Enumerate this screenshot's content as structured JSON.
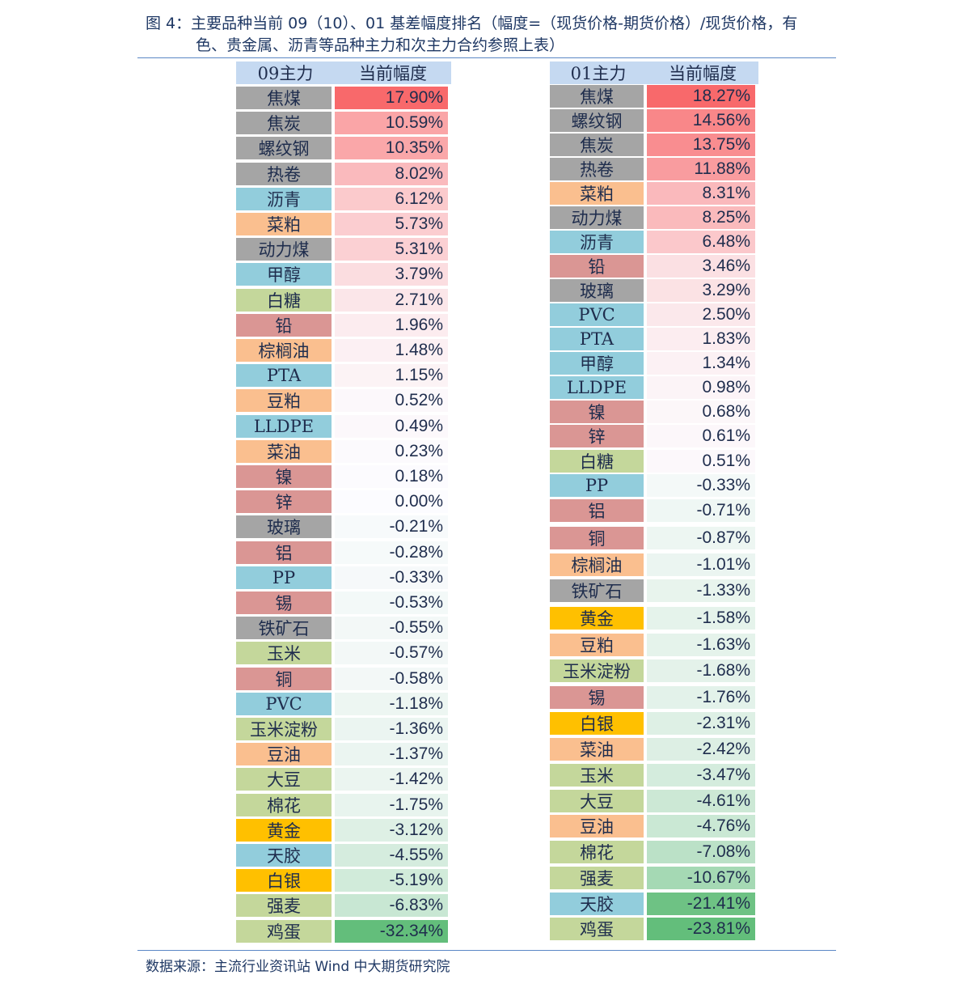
{
  "caption": {
    "line1": "图 4：主要品种当前 09（10）、01 基差幅度排名（幅度=（现货价格-期货价格）/现货价格，有",
    "line2": "色、贵金属、沥青等品种主力和次主力合约参照上表）"
  },
  "left_table": {
    "header": [
      "09主力",
      "当前幅度"
    ],
    "rows": [
      {
        "name": "焦煤",
        "value": "17.90%",
        "cat": "black"
      },
      {
        "name": "焦炭",
        "value": "10.59%",
        "cat": "black"
      },
      {
        "name": "螺纹钢",
        "value": "10.35%",
        "cat": "black"
      },
      {
        "name": "热卷",
        "value": "8.02%",
        "cat": "black"
      },
      {
        "name": "沥青",
        "value": "6.12%",
        "cat": "chem"
      },
      {
        "name": "菜粕",
        "value": "5.73%",
        "cat": "oil"
      },
      {
        "name": "动力煤",
        "value": "5.31%",
        "cat": "black"
      },
      {
        "name": "甲醇",
        "value": "3.79%",
        "cat": "chem"
      },
      {
        "name": "白糖",
        "value": "2.71%",
        "cat": "soft"
      },
      {
        "name": "铅",
        "value": "1.96%",
        "cat": "metal"
      },
      {
        "name": "棕榈油",
        "value": "1.48%",
        "cat": "oil"
      },
      {
        "name": "PTA",
        "value": "1.15%",
        "cat": "chem"
      },
      {
        "name": "豆粕",
        "value": "0.52%",
        "cat": "oil"
      },
      {
        "name": "LLDPE",
        "value": "0.49%",
        "cat": "chem"
      },
      {
        "name": "菜油",
        "value": "0.23%",
        "cat": "oil"
      },
      {
        "name": "镍",
        "value": "0.18%",
        "cat": "metal"
      },
      {
        "name": "锌",
        "value": "0.00%",
        "cat": "metal"
      },
      {
        "name": "玻璃",
        "value": "-0.21%",
        "cat": "black"
      },
      {
        "name": "铝",
        "value": "-0.28%",
        "cat": "metal"
      },
      {
        "name": "PP",
        "value": "-0.33%",
        "cat": "chem"
      },
      {
        "name": "锡",
        "value": "-0.53%",
        "cat": "metal"
      },
      {
        "name": "铁矿石",
        "value": "-0.55%",
        "cat": "black"
      },
      {
        "name": "玉米",
        "value": "-0.57%",
        "cat": "soft"
      },
      {
        "name": "铜",
        "value": "-0.58%",
        "cat": "metal"
      },
      {
        "name": "PVC",
        "value": "-1.18%",
        "cat": "chem"
      },
      {
        "name": "玉米淀粉",
        "value": "-1.36%",
        "cat": "soft"
      },
      {
        "name": "豆油",
        "value": "-1.37%",
        "cat": "oil"
      },
      {
        "name": "大豆",
        "value": "-1.42%",
        "cat": "soft"
      },
      {
        "name": "棉花",
        "value": "-1.75%",
        "cat": "soft"
      },
      {
        "name": "黄金",
        "value": "-3.12%",
        "cat": "precious"
      },
      {
        "name": "天胶",
        "value": "-4.55%",
        "cat": "chem"
      },
      {
        "name": "白银",
        "value": "-5.19%",
        "cat": "precious"
      },
      {
        "name": "强麦",
        "value": "-6.83%",
        "cat": "soft"
      },
      {
        "name": "鸡蛋",
        "value": "-32.34%",
        "cat": "soft"
      }
    ]
  },
  "right_table": {
    "header": [
      "01主力",
      "当前幅度"
    ],
    "rows": [
      {
        "name": "焦煤",
        "value": "18.27%",
        "cat": "black"
      },
      {
        "name": "螺纹钢",
        "value": "14.56%",
        "cat": "black"
      },
      {
        "name": "焦炭",
        "value": "13.75%",
        "cat": "black"
      },
      {
        "name": "热卷",
        "value": "11.88%",
        "cat": "black"
      },
      {
        "name": "菜粕",
        "value": "8.31%",
        "cat": "oil"
      },
      {
        "name": "动力煤",
        "value": "8.25%",
        "cat": "black"
      },
      {
        "name": "沥青",
        "value": "6.48%",
        "cat": "chem"
      },
      {
        "name": "铅",
        "value": "3.46%",
        "cat": "metal"
      },
      {
        "name": "玻璃",
        "value": "3.29%",
        "cat": "black"
      },
      {
        "name": "PVC",
        "value": "2.50%",
        "cat": "chem"
      },
      {
        "name": "PTA",
        "value": "1.83%",
        "cat": "chem"
      },
      {
        "name": "甲醇",
        "value": "1.34%",
        "cat": "chem"
      },
      {
        "name": "LLDPE",
        "value": "0.98%",
        "cat": "chem"
      },
      {
        "name": "镍",
        "value": "0.68%",
        "cat": "metal"
      },
      {
        "name": "锌",
        "value": "0.61%",
        "cat": "metal"
      },
      {
        "name": "白糖",
        "value": "0.51%",
        "cat": "soft"
      },
      {
        "name": "PP",
        "value": "-0.33%",
        "cat": "chem"
      },
      {
        "name": "铝",
        "value": "-0.71%",
        "cat": "metal"
      },
      {
        "name": "铜",
        "value": "-0.87%",
        "cat": "metal"
      },
      {
        "name": "棕榈油",
        "value": "-1.01%",
        "cat": "oil"
      },
      {
        "name": "铁矿石",
        "value": "-1.33%",
        "cat": "black"
      },
      {
        "name": "黄金",
        "value": "-1.58%",
        "cat": "precious"
      },
      {
        "name": "豆粕",
        "value": "-1.63%",
        "cat": "oil"
      },
      {
        "name": "玉米淀粉",
        "value": "-1.68%",
        "cat": "soft"
      },
      {
        "name": "锡",
        "value": "-1.76%",
        "cat": "metal"
      },
      {
        "name": "白银",
        "value": "-2.31%",
        "cat": "precious"
      },
      {
        "name": "菜油",
        "value": "-2.42%",
        "cat": "oil"
      },
      {
        "name": "玉米",
        "value": "-3.47%",
        "cat": "soft"
      },
      {
        "name": "大豆",
        "value": "-4.61%",
        "cat": "soft"
      },
      {
        "name": "豆油",
        "value": "-4.76%",
        "cat": "oil"
      },
      {
        "name": "棉花",
        "value": "-7.08%",
        "cat": "soft"
      },
      {
        "name": "强麦",
        "value": "-10.67%",
        "cat": "soft"
      },
      {
        "name": "天胶",
        "value": "-21.41%",
        "cat": "chem"
      },
      {
        "name": "鸡蛋",
        "value": "-23.81%",
        "cat": "soft"
      }
    ]
  },
  "category_colors": {
    "black": "#a5a5a5",
    "chem": "#92cddc",
    "oil": "#fabf8f",
    "soft": "#c4d79b",
    "metal": "#da9694",
    "precious": "#ffc000"
  },
  "scale_colors": {
    "positive": "#f8696b",
    "neutral": "#fcfcff",
    "negative": "#63be7b"
  },
  "source": "数据来源：主流行业资讯站  Wind    中大期货研究院"
}
